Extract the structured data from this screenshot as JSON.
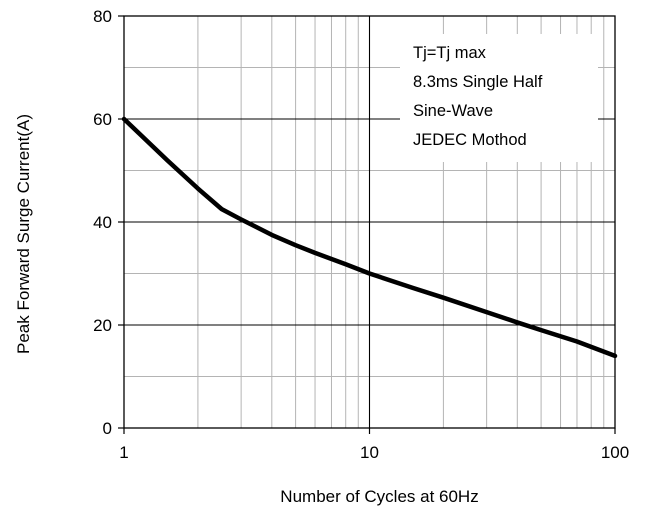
{
  "chart_data": {
    "type": "line",
    "x_scale": "log",
    "xlabel": "Number of Cycles at 60Hz",
    "ylabel": "Peak Forward Surge Current(A)",
    "xlim": [
      1,
      100
    ],
    "ylim": [
      0,
      80
    ],
    "x_ticks": [
      "1",
      "10",
      "100"
    ],
    "y_ticks": [
      "0",
      "20",
      "40",
      "60",
      "80"
    ],
    "grid": true,
    "annotation": [
      "Tj=Tj max",
      "8.3ms Single Half",
      "Sine-Wave",
      "JEDEC Mothod"
    ],
    "series": [
      {
        "x": [
          1,
          1.5,
          2,
          2.5,
          3,
          4,
          5,
          6,
          8,
          10,
          15,
          20,
          30,
          40,
          50,
          70,
          100
        ],
        "y": [
          60,
          52,
          46.5,
          42.5,
          40.5,
          37.5,
          35.5,
          34,
          31.8,
          30,
          27.2,
          25.3,
          22.5,
          20.5,
          19,
          16.8,
          14
        ]
      }
    ]
  }
}
